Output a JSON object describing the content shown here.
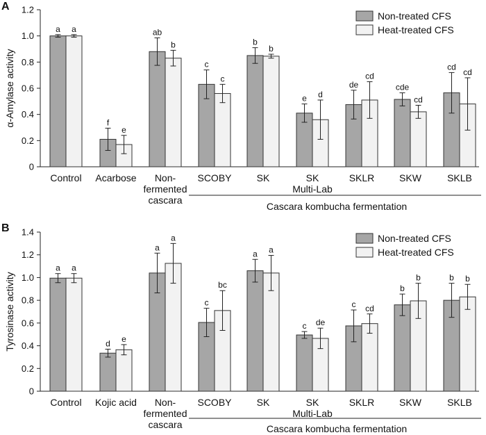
{
  "chart_data": [
    {
      "type": "bar",
      "panel": "A",
      "title": "",
      "xlabel": "",
      "ylabel": "α-Amylase activity",
      "ylim": [
        0,
        1.2
      ],
      "yticks": [
        "0",
        "0.2",
        "0.4",
        "0.6",
        "0.8",
        "1.0",
        "1.2"
      ],
      "categories": [
        [
          "Control"
        ],
        [
          "Acarbose"
        ],
        [
          "Non-",
          "fermented",
          "cascara"
        ],
        [
          "SCOBY"
        ],
        [
          "SK"
        ],
        [
          "SK",
          "Multi-Lab"
        ],
        [
          "SKLR"
        ],
        [
          "SKW"
        ],
        [
          "SKLB"
        ]
      ],
      "series": [
        {
          "name": "Non-treated CFS",
          "color": "#a6a6a6",
          "values": [
            1.0,
            0.21,
            0.88,
            0.63,
            0.85,
            0.41,
            0.475,
            0.515,
            0.565
          ],
          "errors": [
            0.01,
            0.085,
            0.105,
            0.11,
            0.06,
            0.07,
            0.11,
            0.05,
            0.155
          ],
          "letters": [
            "a",
            "f",
            "ab",
            "c",
            "b",
            "e",
            "de",
            "cde",
            "cd"
          ]
        },
        {
          "name": "Heat-treated CFS",
          "color": "#f2f2f2",
          "values": [
            1.0,
            0.17,
            0.83,
            0.56,
            0.845,
            0.36,
            0.51,
            0.42,
            0.48
          ],
          "errors": [
            0.01,
            0.07,
            0.06,
            0.07,
            0.015,
            0.15,
            0.14,
            0.05,
            0.2
          ],
          "letters": [
            "a",
            "e",
            "b",
            "c",
            "b",
            "d",
            "cd",
            "cd",
            "cd"
          ]
        }
      ],
      "group_label": "Cascara kombucha fermentation",
      "legend": "top-right"
    },
    {
      "type": "bar",
      "panel": "B",
      "title": "",
      "xlabel": "",
      "ylabel": "Tyrosinase activity",
      "ylim": [
        0,
        1.4
      ],
      "yticks": [
        "0",
        "0.2",
        "0.4",
        "0.6",
        "0.8",
        "1.0",
        "1.2",
        "1.4"
      ],
      "categories": [
        [
          "Control"
        ],
        [
          "Kojic acid"
        ],
        [
          "Non-",
          "fermented",
          "cascara"
        ],
        [
          "SCOBY"
        ],
        [
          "SK"
        ],
        [
          "SK",
          "Multi-Lab"
        ],
        [
          "SKLR"
        ],
        [
          "SKW"
        ],
        [
          "SKLB"
        ]
      ],
      "series": [
        {
          "name": "Non-treated CFS",
          "color": "#a6a6a6",
          "values": [
            0.995,
            0.335,
            1.04,
            0.605,
            1.06,
            0.495,
            0.575,
            0.76,
            0.8
          ],
          "errors": [
            0.04,
            0.035,
            0.175,
            0.125,
            0.1,
            0.03,
            0.14,
            0.095,
            0.15
          ],
          "letters": [
            "a",
            "d",
            "a",
            "c",
            "a",
            "c",
            "c",
            "b",
            "b"
          ]
        },
        {
          "name": "Heat-treated CFS",
          "color": "#f2f2f2",
          "values": [
            0.995,
            0.365,
            1.125,
            0.71,
            1.04,
            0.465,
            0.595,
            0.795,
            0.83
          ],
          "errors": [
            0.04,
            0.045,
            0.175,
            0.175,
            0.155,
            0.09,
            0.085,
            0.155,
            0.11
          ],
          "letters": [
            "a",
            "e",
            "a",
            "bc",
            "a",
            "de",
            "cd",
            "b",
            "b"
          ]
        }
      ],
      "group_label": "Cascara kombucha fermentation",
      "legend": "top-right"
    }
  ]
}
